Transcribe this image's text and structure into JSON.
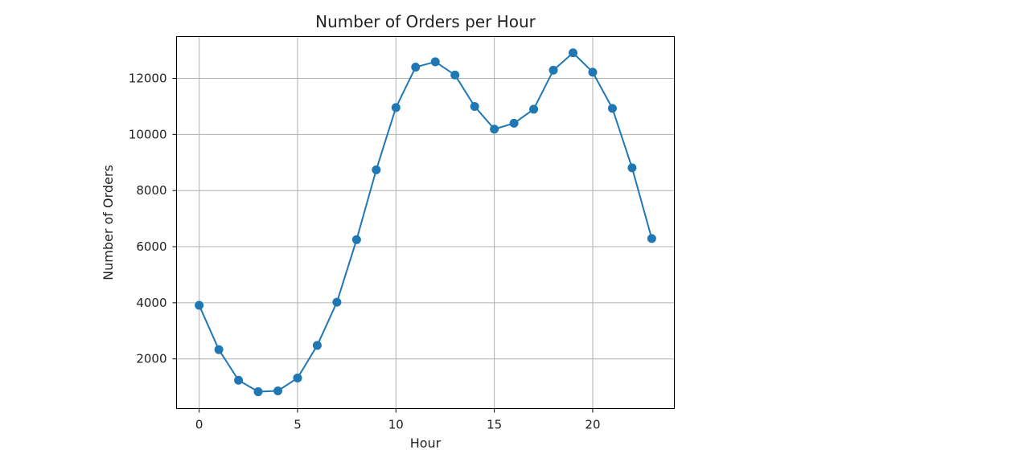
{
  "chart_data": {
    "type": "line",
    "title": "Number of Orders per Hour",
    "xlabel": "Hour",
    "ylabel": "Number of Orders",
    "xlim": [
      -1.15,
      24.15
    ],
    "ylim": [
      230,
      13490
    ],
    "x_ticks": [
      0,
      5,
      10,
      15,
      20
    ],
    "y_ticks": [
      2000,
      4000,
      6000,
      8000,
      10000,
      12000
    ],
    "x_tick_labels": [
      "0",
      "5",
      "10",
      "15",
      "20"
    ],
    "y_tick_labels": [
      "2000",
      "4000",
      "6000",
      "8000",
      "10000",
      "12000"
    ],
    "grid": true,
    "marker": "circle",
    "line_color": "#1f77b4",
    "series": [
      {
        "x": [
          0,
          1,
          2,
          3,
          4,
          5,
          6,
          7,
          8,
          9,
          10,
          11,
          12,
          13,
          14,
          15,
          16,
          17,
          18,
          19,
          20,
          21,
          22,
          23
        ],
        "values": [
          3910,
          2330,
          1240,
          830,
          860,
          1320,
          2480,
          4020,
          6250,
          8740,
          10960,
          12400,
          12590,
          12120,
          11000,
          10190,
          10400,
          10900,
          12290,
          12910,
          12220,
          10930,
          8810,
          6290
        ]
      }
    ]
  }
}
